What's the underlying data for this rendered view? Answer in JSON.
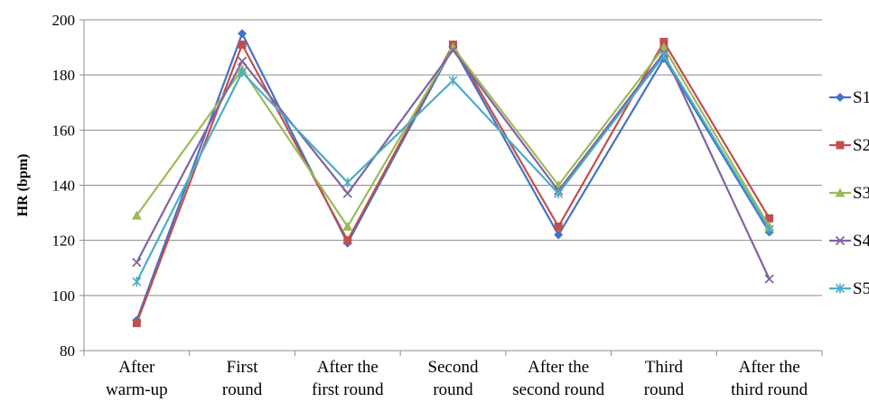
{
  "chart_data": {
    "type": "line",
    "title": "",
    "xlabel": "",
    "ylabel": "HR (bpm)",
    "ylim": [
      80,
      200
    ],
    "yticks": [
      80,
      100,
      120,
      140,
      160,
      180,
      200
    ],
    "grid": "horizontal",
    "legend": "right",
    "categories": [
      [
        "After",
        "warm-up"
      ],
      [
        "First",
        "round"
      ],
      [
        "After the",
        "first round"
      ],
      [
        "Second",
        "round"
      ],
      [
        "After the",
        "second round"
      ],
      [
        "Third",
        "round"
      ],
      [
        "After the",
        "third round"
      ]
    ],
    "series": [
      {
        "name": "S1",
        "color": "#4472C4",
        "marker": "diamond",
        "values": [
          91,
          195,
          119,
          190,
          122,
          186,
          123
        ]
      },
      {
        "name": "S2",
        "color": "#C0504D",
        "marker": "square",
        "values": [
          90,
          191,
          120,
          191,
          125,
          192,
          128
        ]
      },
      {
        "name": "S3",
        "color": "#9BBB59",
        "marker": "triangle",
        "values": [
          129,
          182,
          125,
          190,
          140,
          190,
          125
        ]
      },
      {
        "name": "S4",
        "color": "#8064A2",
        "marker": "x",
        "values": [
          112,
          185,
          137,
          189,
          138,
          188,
          106
        ]
      },
      {
        "name": "S5",
        "color": "#4BACC6",
        "marker": "star",
        "values": [
          105,
          181,
          141,
          178,
          137,
          187,
          124
        ]
      }
    ]
  }
}
